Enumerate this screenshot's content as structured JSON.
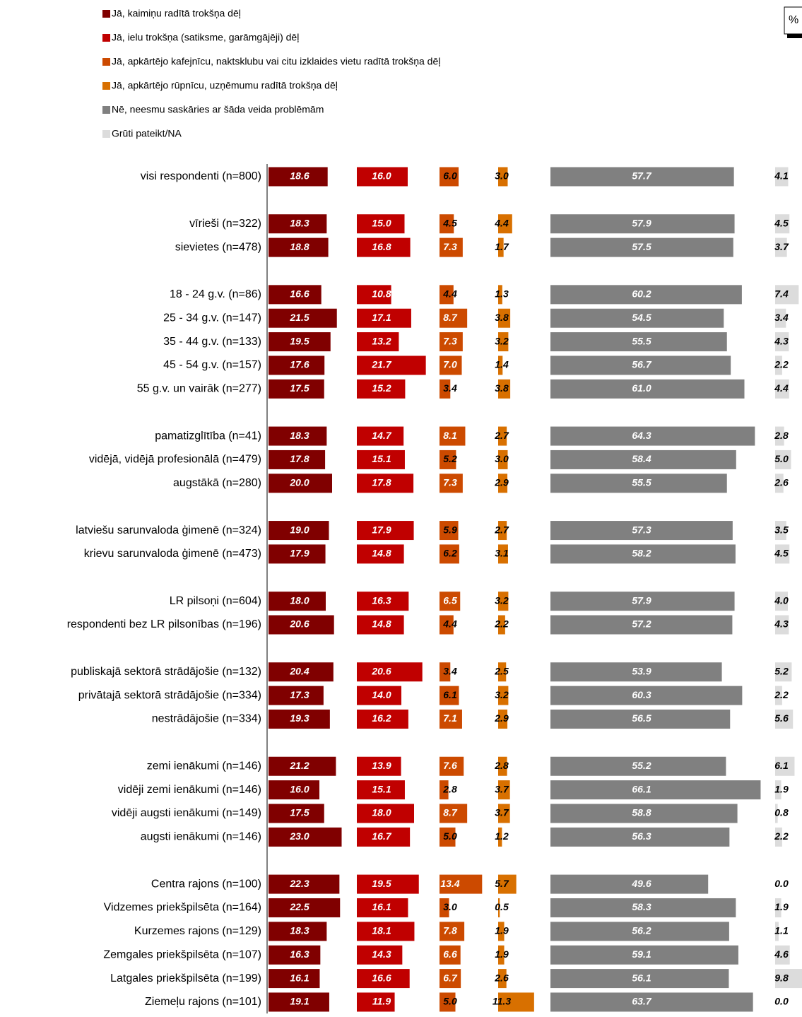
{
  "chart_data": {
    "type": "bar",
    "orientation": "horizontal",
    "unit_label": "%",
    "categories": [
      "visi respondenti (n=800)",
      null,
      "vīrieši (n=322)",
      "sievietes (n=478)",
      null,
      "18 - 24 g.v. (n=86)",
      "25 - 34 g.v. (n=147)",
      "35 - 44 g.v. (n=133)",
      "45 - 54 g.v. (n=157)",
      "55 g.v. un vairāk (n=277)",
      null,
      "pamatizglītība (n=41)",
      "vidējā, vidējā profesionālā (n=479)",
      "augstākā (n=280)",
      null,
      "latviešu sarunvaloda ģimenē (n=324)",
      "krievu sarunvaloda ģimenē (n=473)",
      null,
      "LR pilsoņi (n=604)",
      "respondenti bez LR pilsonības (n=196)",
      null,
      "publiskajā sektorā strādājošie (n=132)",
      "privātajā sektorā strādājošie (n=334)",
      "nestrādājošie (n=334)",
      null,
      "zemi ienākumi (n=146)",
      "vidēji zemi ienākumi (n=146)",
      "vidēji augsti ienākumi (n=149)",
      "augsti ienākumi (n=146)",
      null,
      "Centra rajons (n=100)",
      "Vidzemes priekšpilsēta (n=164)",
      "Kurzemes rajons (n=129)",
      "Zemgales priekšpilsēta (n=107)",
      "Latgales priekšpilsēta (n=199)",
      "Ziemeļu rajons (n=101)"
    ],
    "series": [
      {
        "name": "Jā, kaimiņu radītā trokšņa dēļ",
        "color": "#800000",
        "values": [
          18.6,
          null,
          18.3,
          18.8,
          null,
          16.6,
          21.5,
          19.5,
          17.6,
          17.5,
          null,
          18.3,
          17.8,
          20.0,
          null,
          19.0,
          17.9,
          null,
          18.0,
          20.6,
          null,
          20.4,
          17.3,
          19.3,
          null,
          21.2,
          16.0,
          17.5,
          23.0,
          null,
          22.3,
          22.5,
          18.3,
          16.3,
          16.1,
          19.1
        ],
        "value_labels": [
          "18.6",
          null,
          "18.3",
          "18.8",
          null,
          "16.6",
          "21.5",
          "19.5",
          "17.6",
          "17.5",
          null,
          "18.3",
          "17.8",
          "20.0",
          null,
          "19.0",
          "17.9",
          null,
          "18.0",
          "20.6",
          null,
          "20.4",
          "17.3",
          "19.3",
          null,
          "21.2",
          "16.0",
          "17.5",
          "23.0",
          null,
          "22.3",
          "22.5",
          "18.3",
          "16.3",
          "16.1",
          "19.1"
        ]
      },
      {
        "name": "Jā, ielu trokšņa (satiksme, garāmgājēji) dēļ",
        "color": "#c00000",
        "values": [
          16.0,
          null,
          15.0,
          16.8,
          null,
          10.8,
          17.1,
          13.2,
          21.7,
          15.2,
          null,
          14.7,
          15.1,
          17.8,
          null,
          17.9,
          14.8,
          null,
          16.3,
          14.8,
          null,
          20.6,
          14.0,
          16.2,
          null,
          13.9,
          15.1,
          18.0,
          16.7,
          null,
          19.5,
          16.1,
          18.1,
          14.3,
          16.6,
          11.9
        ],
        "value_labels": [
          "16.0",
          null,
          "15.0",
          "16.8",
          null,
          "10.8",
          "17.1",
          "13.2",
          "21.7",
          "15.2",
          null,
          "14.7",
          "15.1",
          "17.8",
          null,
          "17.9",
          "14.8",
          null,
          "16.3",
          "14.8",
          null,
          "20.6",
          "14.0",
          "16.2",
          null,
          "13.9",
          "15.1",
          "18.0",
          "16.7",
          null,
          "19.5",
          "16.1",
          "18.1",
          "14.3",
          "16.6",
          "11.9"
        ]
      },
      {
        "name": "Jā, apkārtējo kafejnīcu, naktsklubu vai citu izklaides vietu radītā trokšņa dēļ",
        "color": "#cc4a00",
        "values": [
          6.0,
          null,
          4.5,
          7.3,
          null,
          4.4,
          8.7,
          7.3,
          7.0,
          3.4,
          null,
          8.1,
          5.2,
          7.3,
          null,
          5.9,
          6.2,
          null,
          6.5,
          4.4,
          null,
          3.4,
          6.1,
          7.1,
          null,
          7.6,
          2.8,
          8.7,
          5.0,
          null,
          13.4,
          3.0,
          7.8,
          6.6,
          6.7,
          5.0
        ],
        "value_labels": [
          "6.0",
          null,
          "4.5",
          "7.3",
          null,
          "4.4",
          "8.7",
          "7.3",
          "7.0",
          "3.4",
          null,
          "8.1",
          "5.2",
          "7.3",
          null,
          "5.9",
          "6.2",
          null,
          "6.5",
          "4.4",
          null,
          "3.4",
          "6.1",
          "7.1",
          null,
          "7.6",
          "2.8",
          "8.7",
          "5.0",
          null,
          "13.4",
          "3.0",
          "7.8",
          "6.6",
          "6.7",
          "5.0"
        ]
      },
      {
        "name": "Jā, apkārtējo rūpnīcu, uzņēmumu radītā trokšņa dēļ",
        "color": "#d87000",
        "values": [
          3.0,
          null,
          4.4,
          1.7,
          null,
          1.3,
          3.8,
          3.2,
          1.4,
          3.8,
          null,
          2.7,
          3.0,
          2.9,
          null,
          2.7,
          3.1,
          null,
          3.2,
          2.2,
          null,
          2.5,
          3.2,
          2.9,
          null,
          2.8,
          3.7,
          3.7,
          1.2,
          null,
          5.7,
          0.5,
          1.9,
          1.9,
          2.6,
          11.3
        ],
        "value_labels": [
          "3.0",
          null,
          "4.4",
          "1.7",
          null,
          "1.3",
          "3.8",
          "3.2",
          "1.4",
          "3.8",
          null,
          "2.7",
          "3.0",
          "2.9",
          null,
          "2.7",
          "3.1",
          null,
          "3.2",
          "2.2",
          null,
          "2.5",
          "3.2",
          "2.9",
          null,
          "2.8",
          "3.7",
          "3.7",
          "1.2",
          null,
          "5.7",
          "0.5",
          "1.9",
          "1.9",
          "2.6",
          "11.3"
        ]
      },
      {
        "name": "Nē, neesmu saskāries ar šāda veida problēmām",
        "color": "#808080",
        "values": [
          57.7,
          null,
          57.9,
          57.5,
          null,
          60.2,
          54.5,
          55.5,
          56.7,
          61.0,
          null,
          64.3,
          58.4,
          55.5,
          null,
          57.3,
          58.2,
          null,
          57.9,
          57.2,
          null,
          53.9,
          60.3,
          56.5,
          null,
          55.2,
          66.1,
          58.8,
          56.3,
          null,
          49.6,
          58.3,
          56.2,
          59.1,
          56.1,
          63.7
        ],
        "value_labels": [
          "57.7",
          null,
          "57.9",
          "57.5",
          null,
          "60.2",
          "54.5",
          "55.5",
          "56.7",
          "61.0",
          null,
          "64.3",
          "58.4",
          "55.5",
          null,
          "57.3",
          "58.2",
          null,
          "57.9",
          "57.2",
          null,
          "53.9",
          "60.3",
          "56.5",
          null,
          "55.2",
          "66.1",
          "58.8",
          "56.3",
          null,
          "49.6",
          "58.3",
          "56.2",
          "59.1",
          "56.1",
          "63.7"
        ]
      },
      {
        "name": "Grūti pateikt/NA",
        "color": "#dcdcdc",
        "values": [
          4.1,
          null,
          4.5,
          3.7,
          null,
          7.4,
          3.4,
          4.3,
          2.2,
          4.4,
          null,
          2.8,
          5.0,
          2.6,
          null,
          3.5,
          4.5,
          null,
          4.0,
          4.3,
          null,
          5.2,
          2.2,
          5.6,
          null,
          6.1,
          1.9,
          0.8,
          2.2,
          null,
          0.0,
          1.9,
          1.1,
          4.6,
          9.8,
          0.0
        ],
        "value_labels": [
          "4.1",
          null,
          "4.5",
          "3.7",
          null,
          "7.4",
          "3.4",
          "4.3",
          "2.2",
          "4.4",
          null,
          "2.8",
          "5.0",
          "2.6",
          null,
          "3.5",
          "4.5",
          null,
          "4.0",
          "4.3",
          null,
          "5.2",
          "2.2",
          "5.6",
          null,
          "6.1",
          "1.9",
          "0.8",
          "2.2",
          null,
          "0.0",
          "1.9",
          "1.1",
          "4.6",
          "9.8",
          "0.0"
        ]
      }
    ]
  }
}
